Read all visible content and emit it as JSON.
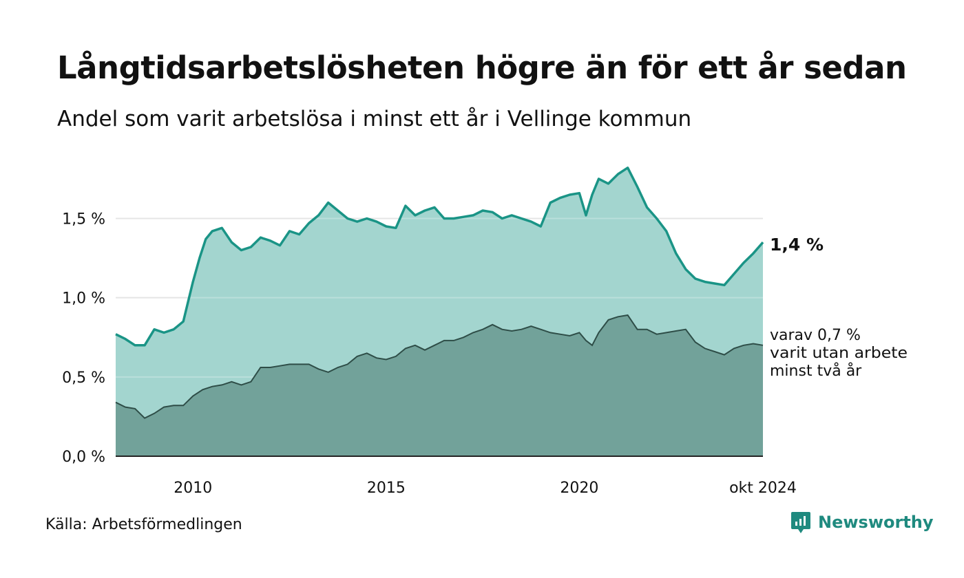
{
  "chart_data": {
    "type": "area",
    "title": "Långtidsarbetslösheten högre än för ett år sedan",
    "subtitle": "Andel som varit arbetslösa i minst ett år i Vellinge kommun",
    "y_ticks": [
      "0,0 %",
      "0,5 %",
      "1,0 %",
      "1,5 %"
    ],
    "y_tick_values": [
      0,
      0.5,
      1.0,
      1.5
    ],
    "ylim": [
      0,
      1.88
    ],
    "x_ticks": [
      "2010",
      "2015",
      "2020",
      "okt 2024"
    ],
    "x_tick_values": [
      2010,
      2015,
      2020,
      2024.75
    ],
    "xlim": [
      2008,
      2024.75
    ],
    "grid": true,
    "colors": {
      "total_fill": "#a3d5cf",
      "total_line": "#1a9486",
      "sub_fill": "#72a29a",
      "sub_line": "#2e4d47"
    },
    "annotations": {
      "end_value": "1,4 %",
      "sub_label": [
        "varav 0,7 %",
        "varit utan arbete",
        "minst två år"
      ]
    },
    "series": [
      {
        "key": "total",
        "x": [
          2008.0,
          2008.25,
          2008.5,
          2008.75,
          2009.0,
          2009.25,
          2009.5,
          2009.75,
          2010.0,
          2010.17,
          2010.33,
          2010.5,
          2010.75,
          2011.0,
          2011.25,
          2011.5,
          2011.75,
          2012.0,
          2012.25,
          2012.5,
          2012.75,
          2013.0,
          2013.25,
          2013.5,
          2013.75,
          2014.0,
          2014.25,
          2014.5,
          2014.75,
          2015.0,
          2015.25,
          2015.5,
          2015.75,
          2016.0,
          2016.25,
          2016.5,
          2016.75,
          2017.0,
          2017.25,
          2017.5,
          2017.75,
          2018.0,
          2018.25,
          2018.5,
          2018.75,
          2019.0,
          2019.25,
          2019.5,
          2019.75,
          2020.0,
          2020.17,
          2020.33,
          2020.5,
          2020.75,
          2021.0,
          2021.25,
          2021.5,
          2021.75,
          2022.0,
          2022.25,
          2022.5,
          2022.75,
          2023.0,
          2023.25,
          2023.5,
          2023.75,
          2024.0,
          2024.25,
          2024.5,
          2024.75
        ],
        "values": [
          0.77,
          0.74,
          0.7,
          0.7,
          0.8,
          0.78,
          0.8,
          0.85,
          1.1,
          1.25,
          1.37,
          1.42,
          1.44,
          1.35,
          1.3,
          1.32,
          1.38,
          1.36,
          1.33,
          1.42,
          1.4,
          1.47,
          1.52,
          1.6,
          1.55,
          1.5,
          1.48,
          1.5,
          1.48,
          1.45,
          1.44,
          1.58,
          1.52,
          1.55,
          1.57,
          1.5,
          1.5,
          1.51,
          1.52,
          1.55,
          1.54,
          1.5,
          1.52,
          1.5,
          1.48,
          1.45,
          1.6,
          1.63,
          1.65,
          1.66,
          1.52,
          1.65,
          1.75,
          1.72,
          1.78,
          1.82,
          1.7,
          1.57,
          1.5,
          1.42,
          1.28,
          1.18,
          1.12,
          1.1,
          1.09,
          1.08,
          1.15,
          1.22,
          1.28,
          1.35
        ]
      },
      {
        "key": "sub",
        "x": [
          2008.0,
          2008.25,
          2008.5,
          2008.75,
          2009.0,
          2009.25,
          2009.5,
          2009.75,
          2010.0,
          2010.25,
          2010.5,
          2010.75,
          2011.0,
          2011.25,
          2011.5,
          2011.75,
          2012.0,
          2012.25,
          2012.5,
          2012.75,
          2013.0,
          2013.25,
          2013.5,
          2013.75,
          2014.0,
          2014.25,
          2014.5,
          2014.75,
          2015.0,
          2015.25,
          2015.5,
          2015.75,
          2016.0,
          2016.25,
          2016.5,
          2016.75,
          2017.0,
          2017.25,
          2017.5,
          2017.75,
          2018.0,
          2018.25,
          2018.5,
          2018.75,
          2019.0,
          2019.25,
          2019.5,
          2019.75,
          2020.0,
          2020.17,
          2020.33,
          2020.5,
          2020.75,
          2021.0,
          2021.25,
          2021.5,
          2021.75,
          2022.0,
          2022.25,
          2022.5,
          2022.75,
          2023.0,
          2023.25,
          2023.5,
          2023.75,
          2024.0,
          2024.25,
          2024.5,
          2024.75
        ],
        "values": [
          0.34,
          0.31,
          0.3,
          0.24,
          0.27,
          0.31,
          0.32,
          0.32,
          0.38,
          0.42,
          0.44,
          0.45,
          0.47,
          0.45,
          0.47,
          0.56,
          0.56,
          0.57,
          0.58,
          0.58,
          0.58,
          0.55,
          0.53,
          0.56,
          0.58,
          0.63,
          0.65,
          0.62,
          0.61,
          0.63,
          0.68,
          0.7,
          0.67,
          0.7,
          0.73,
          0.73,
          0.75,
          0.78,
          0.8,
          0.83,
          0.8,
          0.79,
          0.8,
          0.82,
          0.8,
          0.78,
          0.77,
          0.76,
          0.78,
          0.73,
          0.7,
          0.78,
          0.86,
          0.88,
          0.89,
          0.8,
          0.8,
          0.77,
          0.78,
          0.79,
          0.8,
          0.72,
          0.68,
          0.66,
          0.64,
          0.68,
          0.7,
          0.71,
          0.7
        ]
      }
    ]
  },
  "footer": {
    "source": "Källa: Arbetsförmedlingen",
    "brand": "Newsworthy"
  }
}
